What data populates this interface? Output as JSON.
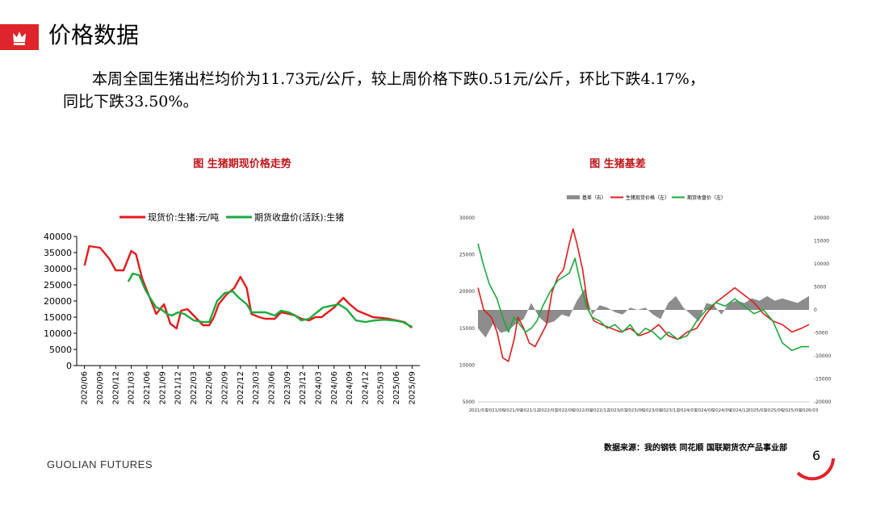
{
  "header": {
    "title": "价格数据"
  },
  "summary": {
    "line1": "本周全国生猪出栏均价为11.73元/公斤，较上周价格下跌0.51元/公斤，环比下跌4.17%，",
    "line2": "同比下跌33.50%。"
  },
  "footer": {
    "source": "数据来源：我的钢铁 同花顺 国联期货农产品事业部",
    "brand": "GUOLIAN FUTURES",
    "page": "6"
  },
  "colors": {
    "accent": "#e0242b",
    "spot": "#e31a1c",
    "futures": "#1aaa3c",
    "basis": "#8c8c8c"
  },
  "chart_data": [
    {
      "type": "line",
      "title": "图  生猪期现价格走势",
      "legend_position": "top",
      "ylim": [
        0,
        40000
      ],
      "yticks": [
        "0",
        "5000",
        "10000",
        "15000",
        "20000",
        "25000",
        "30000",
        "35000",
        "40000"
      ],
      "xticks": [
        "2020/06",
        "2020/09",
        "2020/12",
        "2021/03",
        "2021/06",
        "2021/09",
        "2021/12",
        "2022/03",
        "2022/06",
        "2022/09",
        "2022/12",
        "2023/03",
        "2023/06",
        "2023/09",
        "2023/12",
        "2024/03",
        "2024/06",
        "2024/09",
        "2024/12",
        "2025/03",
        "2025/06",
        "2025/09"
      ],
      "series": [
        {
          "name": "现货价:生猪:元/吨",
          "color": "#e31a1c",
          "points": [
            [
              0,
              31000
            ],
            [
              0.3,
              37000
            ],
            [
              1,
              36500
            ],
            [
              1.6,
              33000
            ],
            [
              2,
              29500
            ],
            [
              2.5,
              29500
            ],
            [
              3,
              35500
            ],
            [
              3.3,
              34500
            ],
            [
              3.7,
              27000
            ],
            [
              4.1,
              22000
            ],
            [
              4.6,
              16000
            ],
            [
              5.1,
              19000
            ],
            [
              5.5,
              13000
            ],
            [
              5.9,
              11500
            ],
            [
              6.2,
              17000
            ],
            [
              6.6,
              17500
            ],
            [
              7.1,
              15000
            ],
            [
              7.6,
              12500
            ],
            [
              8,
              12500
            ],
            [
              8.3,
              15000
            ],
            [
              8.6,
              19000
            ],
            [
              9.1,
              22000
            ],
            [
              9.6,
              24000
            ],
            [
              10,
              27500
            ],
            [
              10.4,
              24000
            ],
            [
              10.7,
              16000
            ],
            [
              11.2,
              15000
            ],
            [
              11.6,
              14500
            ],
            [
              12.2,
              14500
            ],
            [
              12.6,
              16500
            ],
            [
              13.1,
              16000
            ],
            [
              13.5,
              15500
            ],
            [
              13.9,
              14500
            ],
            [
              14.4,
              14000
            ],
            [
              14.8,
              15000
            ],
            [
              15.2,
              15000
            ],
            [
              15.6,
              16500
            ],
            [
              16,
              18000
            ],
            [
              16.6,
              21000
            ],
            [
              17,
              19000
            ],
            [
              17.5,
              17000
            ],
            [
              18,
              16000
            ],
            [
              18.5,
              15000
            ],
            [
              19,
              14800
            ],
            [
              19.5,
              14500
            ],
            [
              20,
              14000
            ],
            [
              20.5,
              13500
            ],
            [
              21,
              11700
            ]
          ]
        },
        {
          "name": "期货收盘价(活跃):生猪",
          "color": "#1aaa3c",
          "points": [
            [
              2.8,
              26000
            ],
            [
              3.1,
              28500
            ],
            [
              3.5,
              28000
            ],
            [
              3.9,
              23500
            ],
            [
              4.2,
              21000
            ],
            [
              4.6,
              18000
            ],
            [
              4.9,
              17500
            ],
            [
              5.3,
              16000
            ],
            [
              5.6,
              15500
            ],
            [
              6,
              16500
            ],
            [
              6.4,
              16000
            ],
            [
              7,
              14000
            ],
            [
              7.6,
              13500
            ],
            [
              8,
              13500
            ],
            [
              8.5,
              20000
            ],
            [
              9,
              22500
            ],
            [
              9.5,
              23000
            ],
            [
              9.9,
              21000
            ],
            [
              10.4,
              19000
            ],
            [
              10.7,
              16500
            ],
            [
              11.2,
              16500
            ],
            [
              11.6,
              16500
            ],
            [
              12.2,
              15500
            ],
            [
              12.6,
              17000
            ],
            [
              13.1,
              16500
            ],
            [
              13.5,
              15500
            ],
            [
              13.9,
              14000
            ],
            [
              14.4,
              14500
            ],
            [
              14.9,
              16500
            ],
            [
              15.3,
              18000
            ],
            [
              15.8,
              18500
            ],
            [
              16.3,
              19000
            ],
            [
              16.8,
              17500
            ],
            [
              17.4,
              14000
            ],
            [
              18,
              13500
            ],
            [
              18.6,
              14000
            ],
            [
              19.2,
              14200
            ],
            [
              19.8,
              14000
            ],
            [
              20.4,
              13500
            ],
            [
              21,
              12000
            ]
          ]
        }
      ]
    },
    {
      "type": "line",
      "title": "图  生猪基差",
      "legend_position": "top",
      "ylim_left": [
        5000,
        30000
      ],
      "ylim_right": [
        -20000,
        20000
      ],
      "yticks_left": [
        "5000",
        "10000",
        "15000",
        "20000",
        "25000",
        "30000"
      ],
      "yticks_right": [
        "-20000",
        "-15000",
        "-10000",
        "-5000",
        "0",
        "5000",
        "10000",
        "15000",
        "20000"
      ],
      "xticks": [
        "2021/03",
        "2021/09",
        "2022/03",
        "2022/09",
        "2023/03",
        "2023/09",
        "2024/03",
        "2024/09",
        "2025/03",
        "2025/09",
        "2026/03"
      ],
      "xticks_mid": [
        "2021/06",
        "2021/12",
        "2022/06",
        "2022/12",
        "2023/06",
        "2023/12",
        "2024/06",
        "2024/12",
        "2025/06"
      ],
      "series": [
        {
          "name": "基差（右）",
          "color": "#8c8c8c",
          "axis": "right",
          "kind": "area",
          "points": [
            [
              0,
              -4000
            ],
            [
              0.4,
              -6000
            ],
            [
              0.8,
              -3000
            ],
            [
              1.2,
              -5000
            ],
            [
              1.6,
              -4500
            ],
            [
              2,
              -3000
            ],
            [
              2.4,
              -2000
            ],
            [
              2.8,
              1500
            ],
            [
              3.2,
              -1500
            ],
            [
              3.6,
              -3000
            ],
            [
              4,
              -2500
            ],
            [
              4.4,
              -1000
            ],
            [
              4.8,
              -1500
            ],
            [
              5.2,
              2000
            ],
            [
              5.6,
              4500
            ],
            [
              6,
              -1000
            ],
            [
              6.4,
              1000
            ],
            [
              6.8,
              500
            ],
            [
              7.2,
              -500
            ],
            [
              7.6,
              -1000
            ],
            [
              8,
              500
            ],
            [
              8.4,
              0
            ],
            [
              8.8,
              500
            ],
            [
              9.2,
              -1000
            ],
            [
              9.6,
              -2000
            ],
            [
              10,
              1500
            ],
            [
              10.4,
              3000
            ],
            [
              10.8,
              500
            ],
            [
              11.2,
              -1000
            ],
            [
              11.6,
              -2500
            ],
            [
              12,
              1500
            ],
            [
              12.4,
              1000
            ],
            [
              12.8,
              -1000
            ],
            [
              13.2,
              1500
            ],
            [
              13.6,
              2000
            ],
            [
              14,
              1500
            ],
            [
              14.4,
              2500
            ],
            [
              14.8,
              2000
            ],
            [
              15.2,
              3000
            ],
            [
              15.6,
              2000
            ],
            [
              16,
              2500
            ],
            [
              16.4,
              2000
            ],
            [
              16.8,
              1500
            ],
            [
              17.4,
              3000
            ]
          ]
        },
        {
          "name": "生猪现货价格（左）",
          "color": "#e31a1c",
          "axis": "left",
          "points": [
            [
              0,
              20500
            ],
            [
              0.3,
              17500
            ],
            [
              0.7,
              16500
            ],
            [
              1,
              14500
            ],
            [
              1.3,
              11000
            ],
            [
              1.6,
              10500
            ],
            [
              1.9,
              13500
            ],
            [
              2.1,
              16500
            ],
            [
              2.4,
              15000
            ],
            [
              2.7,
              13000
            ],
            [
              3,
              12500
            ],
            [
              3.3,
              14000
            ],
            [
              3.6,
              15500
            ],
            [
              3.9,
              20000
            ],
            [
              4.2,
              22000
            ],
            [
              4.5,
              23000
            ],
            [
              4.8,
              26500
            ],
            [
              5,
              28500
            ],
            [
              5.2,
              26500
            ],
            [
              5.5,
              23000
            ],
            [
              5.8,
              17500
            ],
            [
              6.1,
              16000
            ],
            [
              6.5,
              15500
            ],
            [
              7,
              15000
            ],
            [
              7.5,
              14500
            ],
            [
              8,
              15000
            ],
            [
              8.5,
              14000
            ],
            [
              9,
              14500
            ],
            [
              9.5,
              15500
            ],
            [
              10,
              14000
            ],
            [
              10.5,
              13500
            ],
            [
              11,
              14500
            ],
            [
              11.5,
              15000
            ],
            [
              12,
              17000
            ],
            [
              12.5,
              18500
            ],
            [
              13,
              19500
            ],
            [
              13.5,
              20500
            ],
            [
              14,
              19500
            ],
            [
              14.5,
              18500
            ],
            [
              15,
              17000
            ],
            [
              15.5,
              16000
            ],
            [
              16,
              15500
            ],
            [
              16.5,
              14500
            ],
            [
              17,
              15000
            ],
            [
              17.4,
              15500
            ]
          ]
        },
        {
          "name": "期货收盘价（左）",
          "color": "#1aaa3c",
          "axis": "left",
          "points": [
            [
              0,
              26500
            ],
            [
              0.3,
              23500
            ],
            [
              0.6,
              21000
            ],
            [
              1,
              19000
            ],
            [
              1.3,
              16500
            ],
            [
              1.6,
              14500
            ],
            [
              1.9,
              16500
            ],
            [
              2.2,
              15500
            ],
            [
              2.5,
              14500
            ],
            [
              2.8,
              15000
            ],
            [
              3.1,
              16000
            ],
            [
              3.4,
              18000
            ],
            [
              3.8,
              20000
            ],
            [
              4.2,
              21500
            ],
            [
              4.5,
              22000
            ],
            [
              4.8,
              22500
            ],
            [
              5.1,
              24500
            ],
            [
              5.4,
              21000
            ],
            [
              5.7,
              18000
            ],
            [
              6,
              16500
            ],
            [
              6.4,
              16000
            ],
            [
              6.8,
              15000
            ],
            [
              7.2,
              15500
            ],
            [
              7.6,
              14500
            ],
            [
              8,
              15500
            ],
            [
              8.4,
              14000
            ],
            [
              8.8,
              15000
            ],
            [
              9.2,
              14500
            ],
            [
              9.6,
              13500
            ],
            [
              10,
              14500
            ],
            [
              10.5,
              13500
            ],
            [
              11,
              14000
            ],
            [
              11.5,
              16000
            ],
            [
              12,
              17500
            ],
            [
              12.5,
              18500
            ],
            [
              13,
              18000
            ],
            [
              13.5,
              19000
            ],
            [
              14,
              18000
            ],
            [
              14.5,
              17000
            ],
            [
              15,
              17500
            ],
            [
              15.5,
              16000
            ],
            [
              16,
              13000
            ],
            [
              16.5,
              12000
            ],
            [
              17,
              12500
            ],
            [
              17.4,
              12500
            ]
          ]
        }
      ]
    }
  ]
}
